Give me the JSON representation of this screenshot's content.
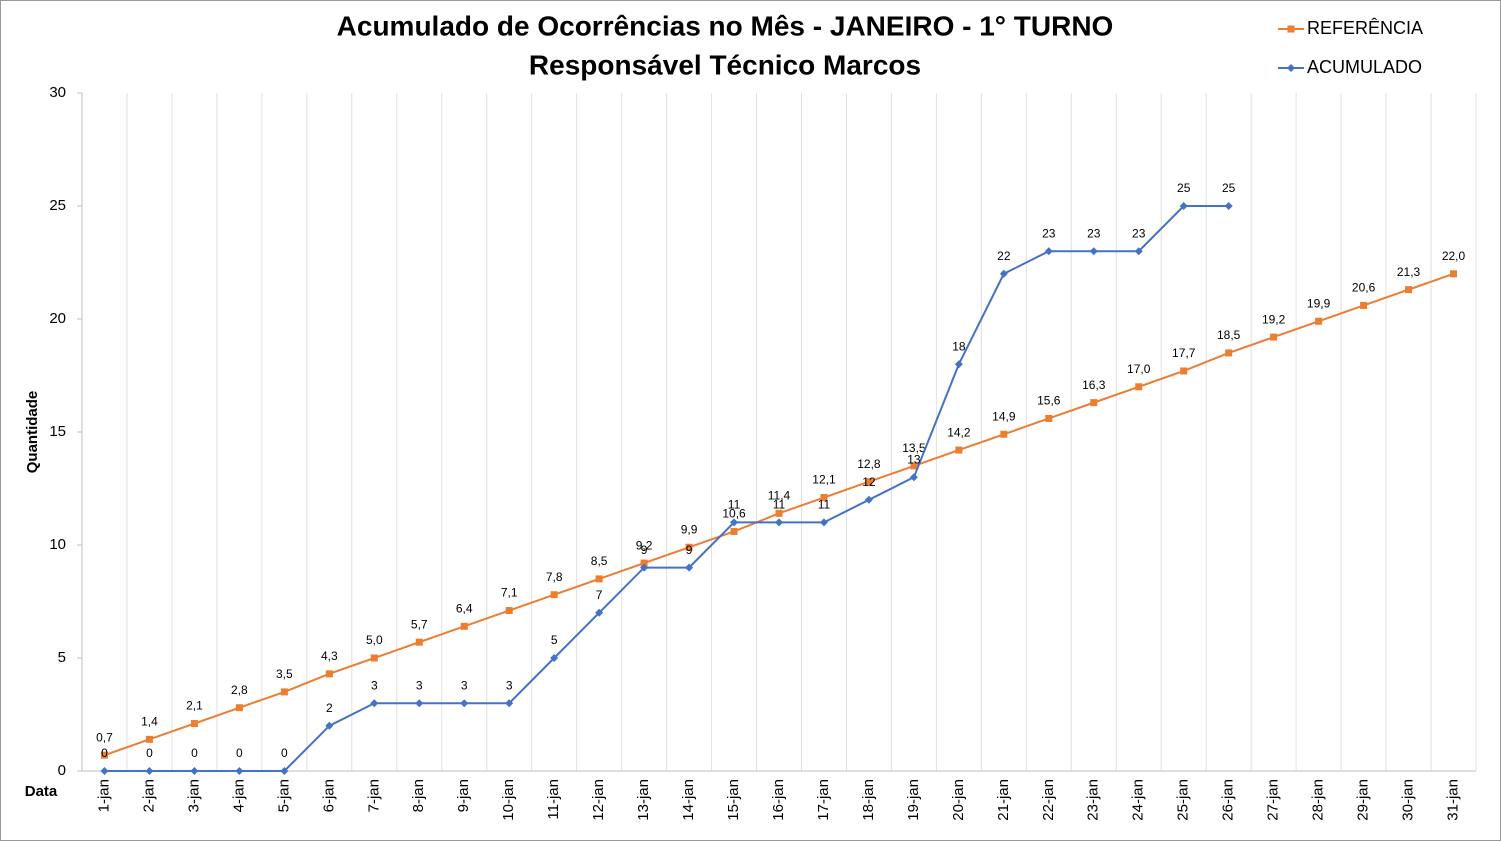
{
  "chart_data": {
    "type": "line",
    "title": "Acumulado de Ocorrências no Mês - JANEIRO - 1° TURNO",
    "subtitle": "Responsável Técnico Marcos",
    "x_label": "Data",
    "y_label": "Quantidade",
    "categories": [
      "1-jan",
      "2-jan",
      "3-jan",
      "4-jan",
      "5-jan",
      "6-jan",
      "7-jan",
      "8-jan",
      "9-jan",
      "10-jan",
      "11-jan",
      "12-jan",
      "13-jan",
      "14-jan",
      "15-jan",
      "16-jan",
      "17-jan",
      "18-jan",
      "19-jan",
      "20-jan",
      "21-jan",
      "22-jan",
      "23-jan",
      "24-jan",
      "25-jan",
      "26-jan",
      "27-jan",
      "28-jan",
      "29-jan",
      "30-jan",
      "31-jan"
    ],
    "series": [
      {
        "name": "REFERÊNCIA",
        "color": "#ed7d31",
        "marker": "square",
        "values": [
          0.7,
          1.4,
          2.1,
          2.8,
          3.5,
          4.3,
          5.0,
          5.7,
          6.4,
          7.1,
          7.8,
          8.5,
          9.2,
          9.9,
          10.6,
          11.4,
          12.1,
          12.8,
          13.5,
          14.2,
          14.9,
          15.6,
          16.3,
          17.0,
          17.7,
          18.5,
          19.2,
          19.9,
          20.6,
          21.3,
          22.0
        ],
        "value_labels": [
          "0,7",
          "1,4",
          "2,1",
          "2,8",
          "3,5",
          "4,3",
          "5,0",
          "5,7",
          "6,4",
          "7,1",
          "7,8",
          "8,5",
          "9,2",
          "9,9",
          "10,6",
          "11,4",
          "12,1",
          "12,8",
          "13,5",
          "14,2",
          "14,9",
          "15,6",
          "16,3",
          "17,0",
          "17,7",
          "18,5",
          "19,2",
          "19,9",
          "20,6",
          "21,3",
          "22,0"
        ]
      },
      {
        "name": "ACUMULADO",
        "color": "#4472c4",
        "marker": "diamond",
        "values": [
          0,
          0,
          0,
          0,
          0,
          2,
          3,
          3,
          3,
          3,
          5,
          7,
          9,
          9,
          11,
          11,
          11,
          12,
          13,
          18,
          22,
          23,
          23,
          23,
          25,
          25,
          null,
          null,
          null,
          null,
          null
        ]
      }
    ],
    "ylim": [
      0,
      30
    ],
    "yticks": [
      0,
      5,
      10,
      15,
      20,
      25,
      30
    ],
    "grid": "x",
    "legend": "top-right"
  }
}
